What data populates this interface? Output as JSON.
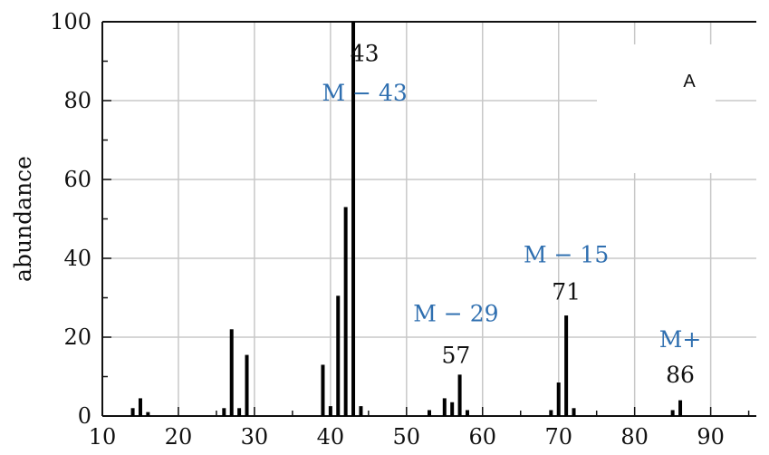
{
  "panel_label": "A",
  "chart_data": {
    "type": "bar",
    "xlabel": "",
    "ylabel": "abundance",
    "xlim": [
      10,
      96
    ],
    "ylim": [
      0,
      100
    ],
    "x_ticks": [
      10,
      20,
      30,
      40,
      50,
      60,
      70,
      80,
      90
    ],
    "y_ticks": [
      0,
      20,
      40,
      60,
      80,
      100
    ],
    "grid": true,
    "peaks": [
      {
        "x": 14,
        "y": 2
      },
      {
        "x": 15,
        "y": 4.5
      },
      {
        "x": 16,
        "y": 1
      },
      {
        "x": 26,
        "y": 2
      },
      {
        "x": 27,
        "y": 22
      },
      {
        "x": 28,
        "y": 2
      },
      {
        "x": 29,
        "y": 15.5
      },
      {
        "x": 39,
        "y": 13
      },
      {
        "x": 40,
        "y": 2.5
      },
      {
        "x": 41,
        "y": 30.5
      },
      {
        "x": 42,
        "y": 53
      },
      {
        "x": 43,
        "y": 100
      },
      {
        "x": 44,
        "y": 2.5
      },
      {
        "x": 53,
        "y": 1.5
      },
      {
        "x": 55,
        "y": 4.5
      },
      {
        "x": 56,
        "y": 3.5
      },
      {
        "x": 57,
        "y": 10.5
      },
      {
        "x": 58,
        "y": 1.5
      },
      {
        "x": 69,
        "y": 1.5
      },
      {
        "x": 70,
        "y": 8.5
      },
      {
        "x": 71,
        "y": 25.5
      },
      {
        "x": 72,
        "y": 2
      },
      {
        "x": 85,
        "y": 1.5
      },
      {
        "x": 86,
        "y": 4
      }
    ],
    "annotations": [
      {
        "text": "43",
        "x": 44.5,
        "y": 90,
        "color": "black"
      },
      {
        "text": "M − 43",
        "x": 44.5,
        "y": 80,
        "color": "blue"
      },
      {
        "text": "M − 29",
        "x": 56.5,
        "y": 24,
        "color": "blue"
      },
      {
        "text": "57",
        "x": 56.5,
        "y": 13.5,
        "color": "black"
      },
      {
        "text": "M − 15",
        "x": 71,
        "y": 39,
        "color": "blue"
      },
      {
        "text": "71",
        "x": 71,
        "y": 29.5,
        "color": "black"
      },
      {
        "text": "M+",
        "x": 86,
        "y": 17.5,
        "color": "blue"
      },
      {
        "text": "86",
        "x": 86,
        "y": 8.5,
        "color": "black"
      }
    ]
  }
}
